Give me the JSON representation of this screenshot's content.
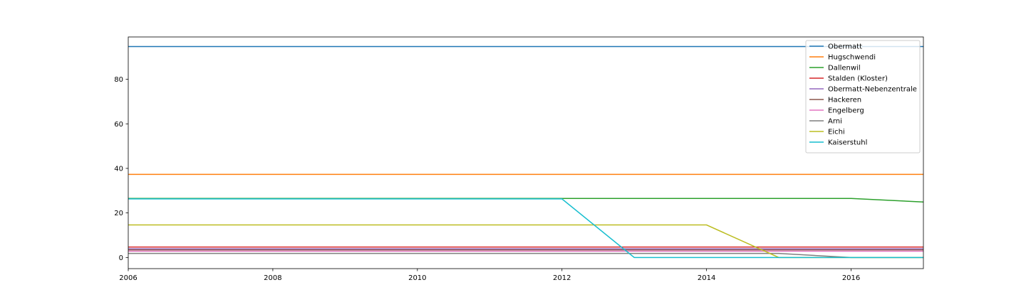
{
  "chart_data": {
    "type": "line",
    "title": "",
    "xlabel": "",
    "ylabel": "",
    "xlim": [
      2006,
      2017
    ],
    "ylim": [
      -5,
      99
    ],
    "xticks": [
      2006,
      2008,
      2010,
      2012,
      2014,
      2016
    ],
    "yticks": [
      0,
      20,
      40,
      60,
      80
    ],
    "grid": false,
    "legend_position": "top-right",
    "x": [
      2006,
      2007,
      2008,
      2009,
      2010,
      2011,
      2012,
      2013,
      2014,
      2015,
      2016,
      2017
    ],
    "series": [
      {
        "name": "Obermatt",
        "color": "#1f77b4",
        "values": [
          94.7,
          94.7,
          94.7,
          94.7,
          94.7,
          94.7,
          94.7,
          94.7,
          94.7,
          94.7,
          94.7,
          94.7
        ]
      },
      {
        "name": "Hugschwendi",
        "color": "#ff7f0e",
        "values": [
          37.3,
          37.3,
          37.3,
          37.3,
          37.3,
          37.3,
          37.3,
          37.3,
          37.3,
          37.3,
          37.3,
          37.3
        ]
      },
      {
        "name": "Dallenwil",
        "color": "#2ca02c",
        "values": [
          26.5,
          26.5,
          26.5,
          26.5,
          26.5,
          26.5,
          26.5,
          26.5,
          26.5,
          26.5,
          26.5,
          24.9
        ]
      },
      {
        "name": "Stalden (Kloster)",
        "color": "#d62728",
        "values": [
          4.7,
          4.7,
          4.7,
          4.7,
          4.7,
          4.7,
          4.7,
          4.7,
          4.7,
          4.7,
          4.7,
          4.7
        ]
      },
      {
        "name": "Obermatt-Nebenzentrale",
        "color": "#9467bd",
        "values": [
          3.9,
          3.9,
          3.9,
          3.9,
          3.9,
          3.9,
          3.9,
          3.9,
          3.9,
          3.9,
          3.9,
          3.9
        ]
      },
      {
        "name": "Hackeren",
        "color": "#8c564b",
        "values": [
          3.4,
          3.4,
          3.4,
          3.4,
          3.4,
          3.4,
          3.4,
          3.4,
          3.4,
          3.4,
          3.4,
          3.4
        ]
      },
      {
        "name": "Engelberg",
        "color": "#e377c2",
        "values": [
          2.8,
          2.8,
          2.8,
          2.8,
          2.8,
          2.8,
          2.8,
          2.8,
          2.8,
          2.8,
          2.8,
          2.8
        ]
      },
      {
        "name": "Arni",
        "color": "#7f7f7f",
        "values": [
          1.8,
          1.8,
          1.8,
          1.8,
          1.8,
          1.8,
          1.8,
          1.8,
          1.8,
          1.8,
          0.0,
          0.0
        ]
      },
      {
        "name": "Eichi",
        "color": "#bcbd22",
        "values": [
          14.6,
          14.6,
          14.6,
          14.6,
          14.6,
          14.6,
          14.6,
          14.6,
          14.6,
          0.0,
          0.0,
          0.0
        ]
      },
      {
        "name": "Kaiserstuhl",
        "color": "#17becf",
        "values": [
          26.3,
          26.3,
          26.3,
          26.3,
          26.3,
          26.3,
          26.3,
          0.0,
          0.0,
          0.0,
          0.0,
          0.0
        ]
      }
    ]
  }
}
